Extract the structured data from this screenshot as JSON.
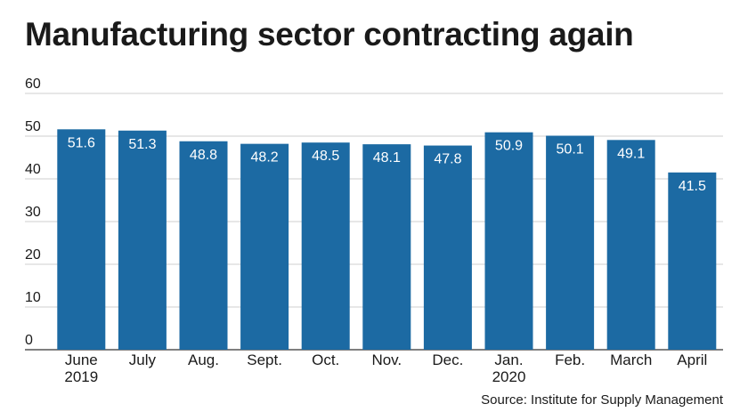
{
  "chart_data": {
    "type": "bar",
    "title": "Manufacturing sector contracting again",
    "categories": [
      [
        "June",
        "2019"
      ],
      [
        "July"
      ],
      [
        "Aug."
      ],
      [
        "Sept."
      ],
      [
        "Oct."
      ],
      [
        "Nov."
      ],
      [
        "Dec."
      ],
      [
        "Jan.",
        "2020"
      ],
      [
        "Feb."
      ],
      [
        "March"
      ],
      [
        "April"
      ]
    ],
    "values": [
      51.6,
      51.3,
      48.8,
      48.2,
      48.5,
      48.1,
      47.8,
      50.9,
      50.1,
      49.1,
      41.5
    ],
    "value_labels": [
      "51.6",
      "51.3",
      "48.8",
      "48.2",
      "48.5",
      "48.1",
      "47.8",
      "50.9",
      "50.1",
      "49.1",
      "41.5"
    ],
    "ylim": [
      0,
      60
    ],
    "yticks": [
      "0",
      "10",
      "20",
      "30",
      "40",
      "50",
      "60"
    ],
    "xlabel": "",
    "ylabel": "",
    "grid": true,
    "bar_color": "#1c6aa3",
    "source": "Source: Institute for Supply Management"
  }
}
